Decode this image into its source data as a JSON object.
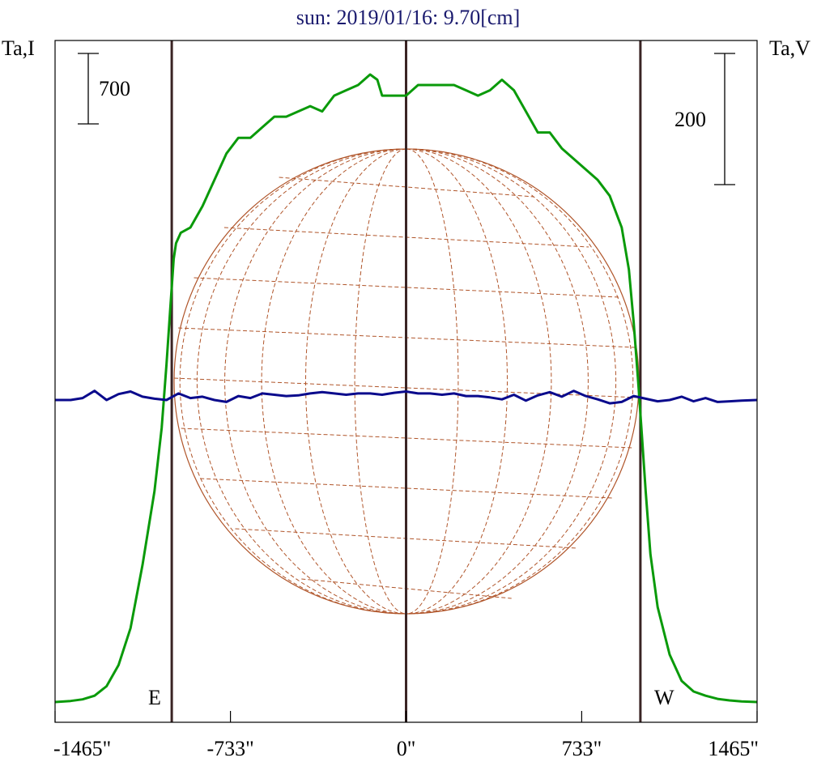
{
  "title": "sun: 2019/01/16: 9.70[cm]",
  "left_label": "Ta,I",
  "right_label": "Ta,V",
  "left_scale_label": "700",
  "right_scale_label": "200",
  "east_label": "E",
  "west_label": "W",
  "colors": {
    "title": "#1a1a6e",
    "intensity": "#0a9a0a",
    "polarization": "#0a0a8c",
    "disk": "#b0552a",
    "limb_lines": "#3a2424",
    "frame": "#000000"
  },
  "chart_data": {
    "type": "line",
    "title": "sun: 2019/01/16: 9.70[cm]",
    "xlabel": "",
    "ylabel_left": "Ta,I",
    "ylabel_right": "Ta,V",
    "xlim": [
      -1465,
      1465
    ],
    "x_ticks": [
      -1465,
      -733,
      0,
      733,
      1465
    ],
    "x_tick_labels": [
      "-1465\"",
      "-733\"",
      "0\"",
      "733\"",
      "1465\""
    ],
    "limb_markers": [
      -978,
      0,
      978
    ],
    "scale_bars": {
      "I": 700,
      "V": 200
    },
    "series": [
      {
        "name": "Ta,I",
        "axis": "left",
        "x": [
          -1465,
          -1400,
          -1350,
          -1300,
          -1250,
          -1200,
          -1150,
          -1100,
          -1050,
          -1020,
          -1000,
          -985,
          -970,
          -960,
          -940,
          -900,
          -850,
          -800,
          -750,
          -700,
          -650,
          -600,
          -550,
          -500,
          -450,
          -400,
          -350,
          -300,
          -250,
          -200,
          -150,
          -120,
          -100,
          -50,
          0,
          50,
          100,
          150,
          200,
          250,
          300,
          350,
          400,
          450,
          500,
          550,
          600,
          650,
          700,
          750,
          800,
          850,
          900,
          930,
          950,
          970,
          985,
          1000,
          1020,
          1050,
          1100,
          1150,
          1200,
          1250,
          1300,
          1350,
          1400,
          1465
        ],
        "y": [
          0,
          10,
          25,
          60,
          150,
          350,
          700,
          1300,
          2000,
          2600,
          3200,
          3700,
          4200,
          4350,
          4450,
          4500,
          4700,
          4950,
          5200,
          5350,
          5350,
          5450,
          5550,
          5550,
          5600,
          5650,
          5600,
          5750,
          5800,
          5850,
          5950,
          5900,
          5750,
          5750,
          5750,
          5850,
          5850,
          5850,
          5850,
          5800,
          5750,
          5800,
          5900,
          5800,
          5600,
          5400,
          5400,
          5250,
          5150,
          5050,
          4950,
          4800,
          4500,
          4100,
          3600,
          3000,
          2500,
          2000,
          1400,
          900,
          450,
          200,
          100,
          60,
          30,
          15,
          5,
          0
        ]
      },
      {
        "name": "Ta,V",
        "axis": "right",
        "x": [
          -1465,
          -1400,
          -1350,
          -1300,
          -1250,
          -1200,
          -1150,
          -1100,
          -1050,
          -1000,
          -950,
          -900,
          -850,
          -800,
          -750,
          -700,
          -650,
          -600,
          -550,
          -500,
          -450,
          -400,
          -350,
          -300,
          -250,
          -200,
          -150,
          -100,
          -50,
          0,
          50,
          100,
          150,
          200,
          250,
          300,
          350,
          400,
          450,
          500,
          550,
          600,
          650,
          700,
          750,
          800,
          850,
          900,
          950,
          1000,
          1050,
          1100,
          1150,
          1200,
          1250,
          1300,
          1350,
          1400,
          1465
        ],
        "y": [
          0,
          0,
          3,
          14,
          0,
          9,
          13,
          5,
          2,
          0,
          10,
          3,
          5,
          0,
          -3,
          6,
          3,
          10,
          8,
          6,
          7,
          10,
          12,
          10,
          8,
          10,
          10,
          8,
          11,
          13,
          10,
          10,
          8,
          10,
          6,
          6,
          4,
          1,
          8,
          -1,
          7,
          12,
          5,
          14,
          6,
          1,
          -5,
          -3,
          6,
          2,
          -2,
          0,
          5,
          -2,
          3,
          -3,
          -2,
          -1,
          0
        ]
      }
    ]
  }
}
